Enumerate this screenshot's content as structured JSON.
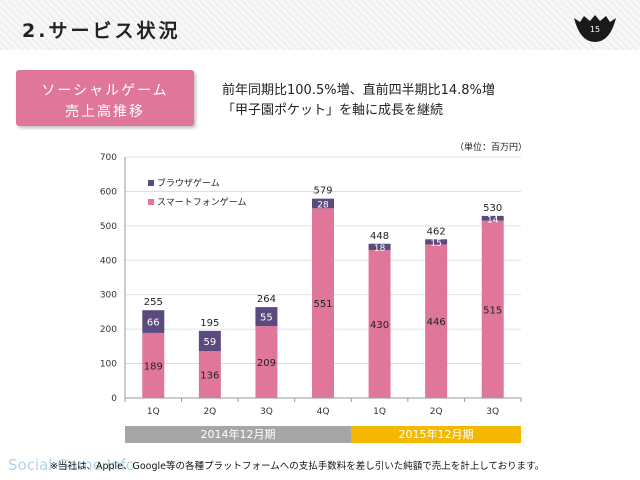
{
  "header": {
    "title": "2.サービス状況",
    "page_number": "15"
  },
  "category": {
    "line1": "ソーシャルゲーム",
    "line2": "売上高推移"
  },
  "headline": {
    "line1": "前年同期比100.5%増、直前四半期比14.8%増",
    "line2": "「甲子園ポケット」を軸に成長を継続"
  },
  "unit_label": "（単位：百万円）",
  "periods": [
    {
      "label": "2014年12月期",
      "color": "#a6a6a6"
    },
    {
      "label": "2015年12月期",
      "color": "#f5b800"
    }
  ],
  "footnote": "※当社は、Apple、Google等の各種プラットフォームへの支払手数料を差し引いた純額で売上を計上しております。",
  "watermark": "Social Game Info",
  "chart_data": {
    "type": "bar",
    "stacked": true,
    "categories": [
      "1Q",
      "2Q",
      "3Q",
      "4Q",
      "1Q",
      "2Q",
      "3Q"
    ],
    "series": [
      {
        "name": "スマートフォンゲーム",
        "color": "#e0779a",
        "values": [
          189,
          136,
          209,
          551,
          430,
          446,
          515
        ]
      },
      {
        "name": "ブラウザゲーム",
        "color": "#5b4a7e",
        "values": [
          66,
          59,
          55,
          28,
          18,
          15,
          14
        ]
      }
    ],
    "totals": [
      255,
      195,
      264,
      579,
      448,
      462,
      530
    ],
    "ylim": [
      0,
      700
    ],
    "yticks": [
      0,
      100,
      200,
      300,
      400,
      500,
      600,
      700
    ],
    "grid": true,
    "legend_position": "top-left"
  }
}
